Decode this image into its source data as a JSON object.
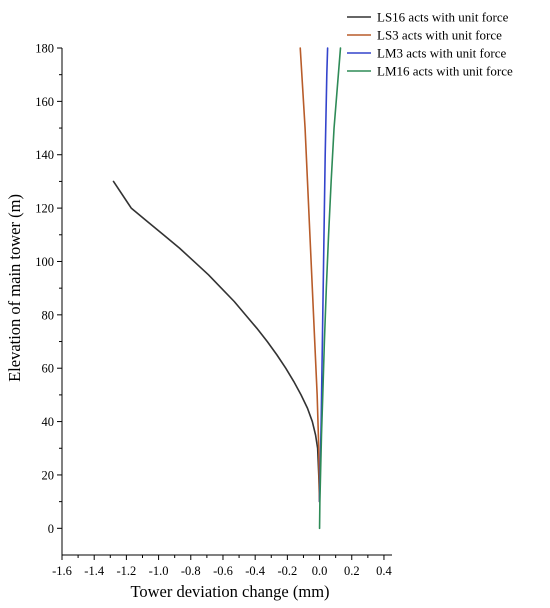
{
  "chart_data": {
    "type": "line",
    "title": "",
    "xlabel": "Tower deviation change (mm)",
    "ylabel": "Elevation of main tower (m)",
    "xlim": [
      -1.6,
      0.45
    ],
    "ylim": [
      -10,
      180
    ],
    "xticks": [
      -1.6,
      -1.4,
      -1.2,
      -1.0,
      -0.8,
      -0.6,
      -0.4,
      -0.2,
      0.0,
      0.2,
      0.4
    ],
    "xtick_labels": [
      "-1.6",
      "-1.4",
      "-1.2",
      "-1.0",
      "-0.8",
      "-0.6",
      "-0.4",
      "-0.2",
      "0.0",
      "0.2",
      "0.4"
    ],
    "yticks": [
      0,
      20,
      40,
      60,
      80,
      100,
      120,
      140,
      160,
      180
    ],
    "ytick_labels": [
      "0",
      "20",
      "40",
      "60",
      "80",
      "100",
      "120",
      "140",
      "160",
      "180"
    ],
    "grid": false,
    "legend_position": "top-right",
    "series": [
      {
        "name": "LS16 acts with unit force",
        "color": "#333333",
        "x": [
          0.0,
          -0.005,
          -0.012,
          -0.025,
          -0.045,
          -0.075,
          -0.115,
          -0.16,
          -0.21,
          -0.265,
          -0.325,
          -0.39,
          -0.46,
          -0.53,
          -0.61,
          -0.69,
          -0.78,
          -0.87,
          -0.97,
          -1.07,
          -1.17,
          -1.28
        ],
        "y": [
          10,
          20,
          30,
          35,
          40,
          45,
          50,
          55,
          60,
          65,
          70,
          75,
          80,
          85,
          90,
          95,
          100,
          105,
          110,
          115,
          120,
          130
        ]
      },
      {
        "name": "LS3 acts with unit force",
        "color": "#b85c2a",
        "x": [
          0.0,
          -0.005,
          -0.015,
          -0.03,
          -0.045,
          -0.06,
          -0.075,
          -0.09,
          -0.105,
          -0.12
        ],
        "y": [
          10,
          30,
          50,
          70,
          90,
          110,
          130,
          150,
          165,
          180
        ]
      },
      {
        "name": "LM3 acts with unit force",
        "color": "#3344cc",
        "x": [
          0.0,
          0.005,
          0.01,
          0.015,
          0.02,
          0.025,
          0.03,
          0.035,
          0.04,
          0.045,
          0.05
        ],
        "y": [
          10,
          25,
          40,
          60,
          80,
          100,
          120,
          140,
          155,
          170,
          180
        ]
      },
      {
        "name": "LM16 acts with unit force",
        "color": "#2e8b57",
        "x": [
          0.0,
          0.002,
          0.006,
          0.012,
          0.02,
          0.03,
          0.042,
          0.056,
          0.072,
          0.09,
          0.11,
          0.13
        ],
        "y": [
          0,
          10,
          20,
          35,
          50,
          70,
          90,
          110,
          130,
          150,
          165,
          180
        ]
      }
    ]
  }
}
